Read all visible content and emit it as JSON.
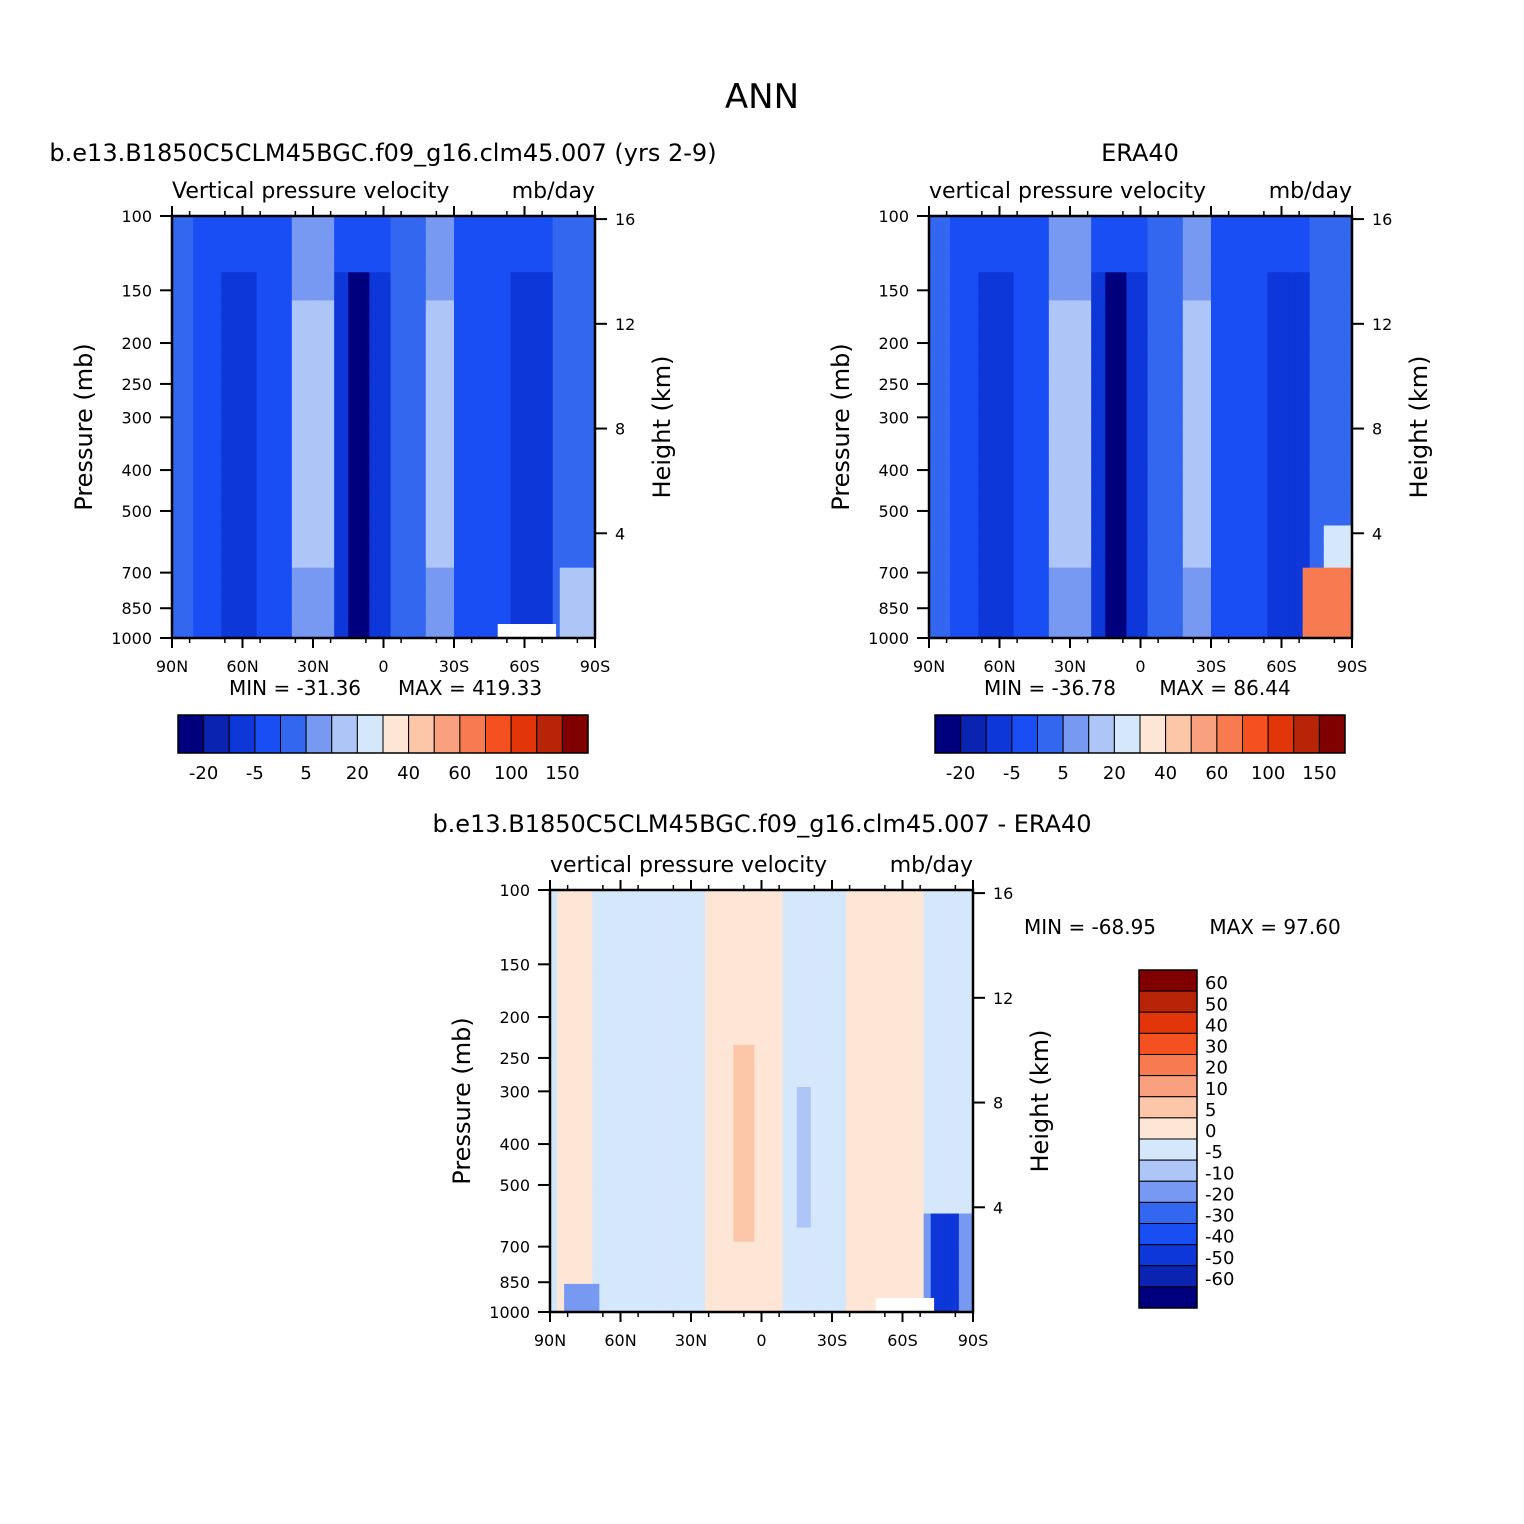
{
  "main_title": "ANN",
  "palette": {
    "abs": [
      "#00007f",
      "#0a23b0",
      "#0d37d8",
      "#1a4ef5",
      "#3367f0",
      "#7799f2",
      "#adc6f7",
      "#d5e7fb",
      "#fde6d6",
      "#fcc6a9",
      "#f9a07e",
      "#f77a50",
      "#f5501f",
      "#e2360a",
      "#b82408",
      "#800000"
    ],
    "diff": [
      "#00007f",
      "#0a23b0",
      "#0d37d8",
      "#1a4ef5",
      "#3367f0",
      "#7799f2",
      "#adc6f7",
      "#d5e7fb",
      "#fde6d6",
      "#fcc6a9",
      "#f9a07e",
      "#f77a50",
      "#f5501f",
      "#e2360a",
      "#b82408",
      "#800000"
    ]
  },
  "axes": {
    "x_ticks": [
      "90N",
      "60N",
      "30N",
      "0",
      "30S",
      "60S",
      "90S"
    ],
    "p_ticks": [
      "100",
      "150",
      "200",
      "250",
      "300",
      "400",
      "500",
      "700",
      "850",
      "1000"
    ],
    "h_ticks": [
      "16",
      "12",
      "8",
      "4"
    ],
    "ylabel_left": "Pressure (mb)",
    "ylabel_right": "Height (km)"
  },
  "panels": [
    {
      "title": "b.e13.B1850C5CLM45BGC.f09_g16.clm45.007 (yrs 2-9)",
      "left_sub": "Vertical pressure velocity",
      "right_sub": "mb/day",
      "min_label": "MIN = -31.36",
      "max_label": "MAX = 419.33",
      "colorbar_labels": [
        "-20",
        "-5",
        "5",
        "20",
        "40",
        "60",
        "100",
        "150"
      ]
    },
    {
      "title": "ERA40",
      "left_sub": "vertical pressure velocity",
      "right_sub": "mb/day",
      "min_label": "MIN = -36.78",
      "max_label": "MAX = 86.44",
      "colorbar_labels": [
        "-20",
        "-5",
        "5",
        "20",
        "40",
        "60",
        "100",
        "150"
      ]
    },
    {
      "title": "b.e13.B1850C5CLM45BGC.f09_g16.clm45.007 - ERA40",
      "left_sub": "vertical pressure velocity",
      "right_sub": "mb/day",
      "min_label": "MIN = -68.95",
      "max_label": "MAX = 97.60",
      "colorbar_labels": [
        "60",
        "50",
        "40",
        "30",
        "20",
        "10",
        "5",
        "0",
        "-5",
        "-10",
        "-20",
        "-30",
        "-40",
        "-50",
        "-60"
      ]
    }
  ],
  "chart_data": [
    {
      "type": "heatmap",
      "title": "b.e13.B1850C5CLM45BGC.f09_g16.clm45.007 (yrs 2-9)",
      "x": [
        "90N",
        "60N",
        "30N",
        "0",
        "30S",
        "60S",
        "90S"
      ],
      "y_pressure_mb": [
        100,
        150,
        200,
        250,
        300,
        400,
        500,
        700,
        850,
        1000
      ],
      "color_levels": [
        -20,
        -5,
        5,
        20,
        40,
        60,
        100,
        150
      ],
      "min": -31.36,
      "max": 419.33
    },
    {
      "type": "heatmap",
      "title": "ERA40",
      "x": [
        "90N",
        "60N",
        "30N",
        "0",
        "30S",
        "60S",
        "90S"
      ],
      "y_pressure_mb": [
        100,
        150,
        200,
        250,
        300,
        400,
        500,
        700,
        850,
        1000
      ],
      "color_levels": [
        -20,
        -5,
        5,
        20,
        40,
        60,
        100,
        150
      ],
      "min": -36.78,
      "max": 86.44
    },
    {
      "type": "heatmap",
      "title": "b.e13.B1850C5CLM45BGC.f09_g16.clm45.007 - ERA40",
      "x": [
        "90N",
        "60N",
        "30N",
        "0",
        "30S",
        "60S",
        "90S"
      ],
      "y_pressure_mb": [
        100,
        150,
        200,
        250,
        300,
        400,
        500,
        700,
        850,
        1000
      ],
      "color_levels": [
        -60,
        -50,
        -40,
        -30,
        -20,
        -10,
        -5,
        0,
        5,
        10,
        20,
        30,
        40,
        50,
        60
      ],
      "min": -68.95,
      "max": 97.6
    }
  ]
}
